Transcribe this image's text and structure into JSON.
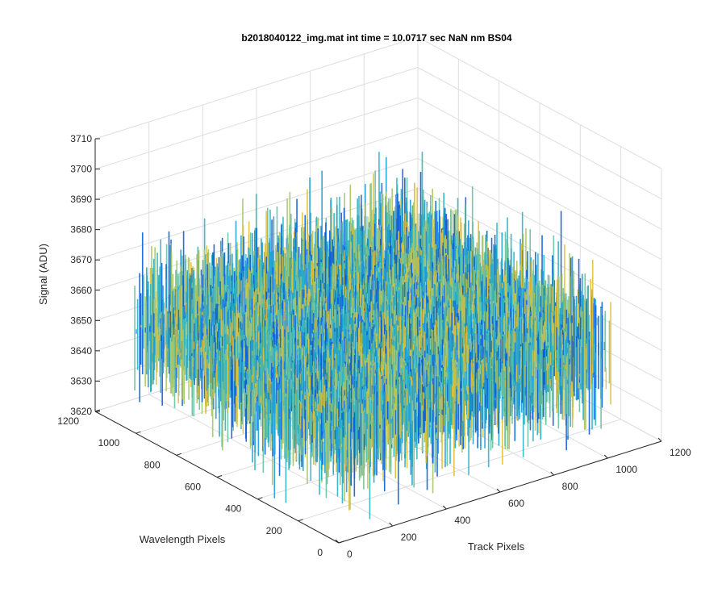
{
  "chart_data": {
    "type": "surface",
    "title": "b2018040122_img.mat int time = 10.0717 sec   NaN nm BS04",
    "xlabel": "Track Pixels",
    "ylabel": "Wavelength Pixels",
    "zlabel": "Signal (ADU)",
    "xlim": [
      0,
      1200
    ],
    "ylim": [
      0,
      1200
    ],
    "zlim": [
      3620,
      3710
    ],
    "x_ticks": [
      "0",
      "200",
      "400",
      "600",
      "800",
      "1000",
      "1200"
    ],
    "y_ticks": [
      "0",
      "200",
      "400",
      "600",
      "800",
      "1000",
      "1200"
    ],
    "z_ticks": [
      "3620",
      "3630",
      "3640",
      "3650",
      "3660",
      "3670",
      "3680",
      "3690",
      "3700",
      "3710"
    ],
    "grid": true,
    "colormap": [
      "#0b5ed9",
      "#1d9fd4",
      "#2bb3c4",
      "#67c0a0",
      "#a9c466",
      "#e0bf3a"
    ],
    "data_extent": {
      "x": [
        1,
        1024
      ],
      "y": [
        1,
        1024
      ]
    },
    "signal_mean": 3655,
    "signal_range": [
      3623,
      3706
    ]
  }
}
